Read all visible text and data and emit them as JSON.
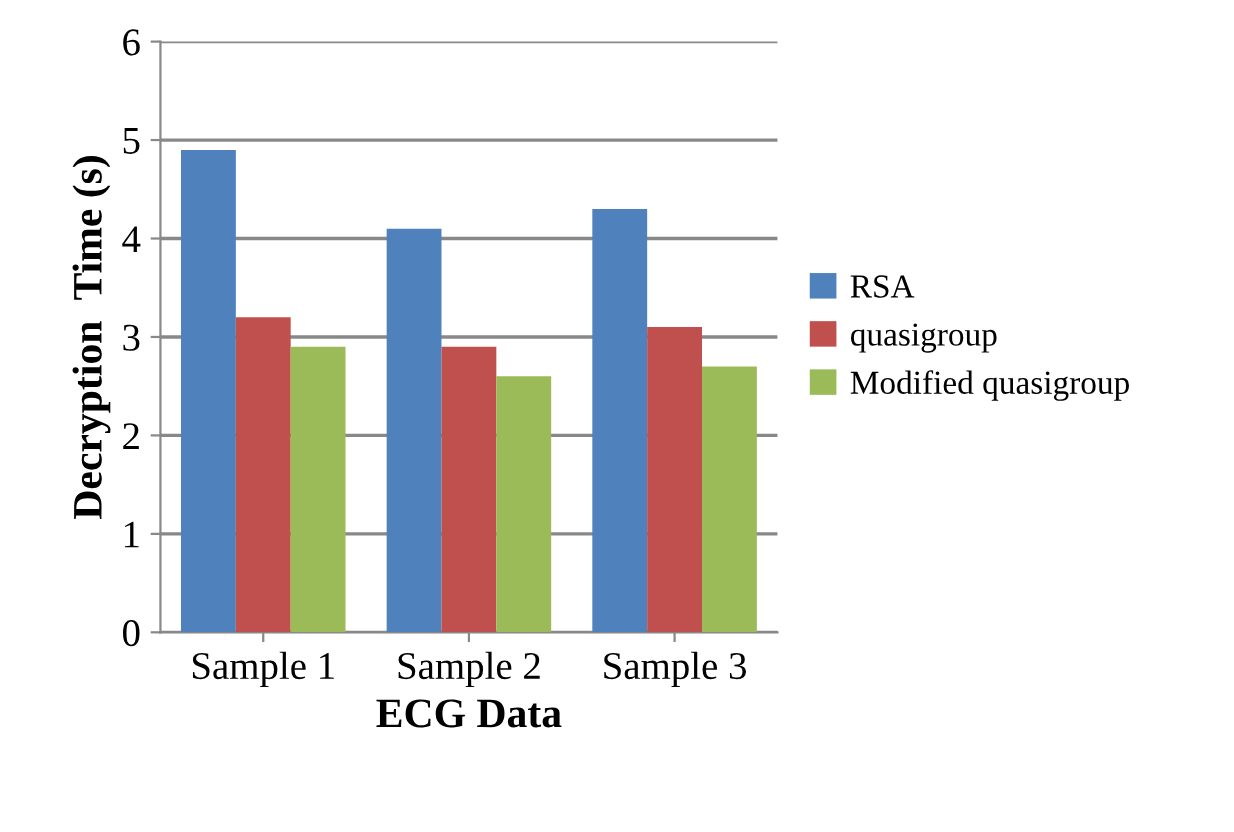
{
  "chart_data": {
    "type": "bar",
    "xlabel": "ECG Data",
    "ylabel": "Decryption  Time (s)",
    "categories": [
      "Sample 1",
      "Sample 2",
      "Sample 3"
    ],
    "series": [
      {
        "name": "RSA",
        "color": "#4f81bd",
        "values": [
          4.9,
          4.1,
          4.3
        ]
      },
      {
        "name": "quasigroup",
        "color": "#c0504d",
        "values": [
          3.2,
          2.9,
          3.1
        ]
      },
      {
        "name": "Modified quasigroup",
        "color": "#9bbb59",
        "values": [
          2.9,
          2.6,
          2.7
        ]
      }
    ],
    "ylim": [
      0,
      6
    ],
    "yticks": [
      0,
      1,
      2,
      3,
      4,
      5,
      6
    ],
    "grid": "y",
    "legend": "right"
  }
}
